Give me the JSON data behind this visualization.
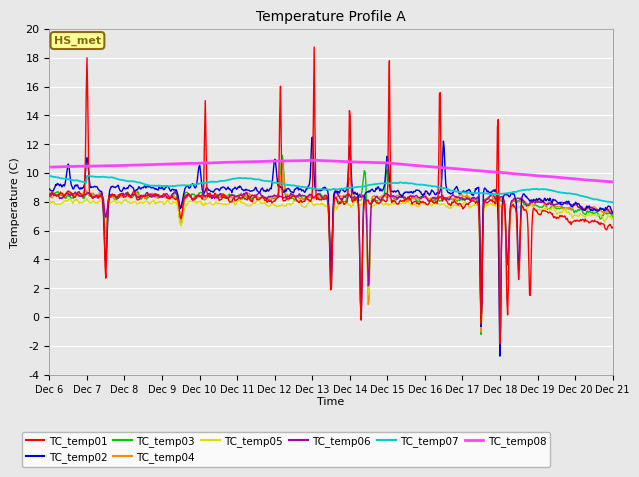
{
  "title": "Temperature Profile A",
  "xlabel": "Time",
  "ylabel": "Temperature (C)",
  "ylim": [
    -4,
    20
  ],
  "annotation_text": "HS_met",
  "annotation_bg": "#FFFF99",
  "annotation_border": "#8B6914",
  "plot_bg": "#E8E8E8",
  "fig_bg": "#E8E8E8",
  "grid_color": "#FFFFFF",
  "series_colors": {
    "TC_temp01": "#FF0000",
    "TC_temp02": "#0000DD",
    "TC_temp03": "#00CC00",
    "TC_temp04": "#FF8800",
    "TC_temp05": "#DDDD00",
    "TC_temp06": "#AA00AA",
    "TC_temp07": "#00CCCC",
    "TC_temp08": "#FF44FF"
  },
  "x_tick_labels": [
    "Dec 6",
    "Dec 7",
    "Dec 8",
    "Dec 9",
    "Dec 10",
    "Dec 11",
    "Dec 12",
    "Dec 13",
    "Dec 14",
    "Dec 15",
    "Dec 16",
    "Dec 17",
    "Dec 18",
    "Dec 19",
    "Dec 20",
    "Dec 21"
  ],
  "yticks": [
    -4,
    -2,
    0,
    2,
    4,
    6,
    8,
    10,
    12,
    14,
    16,
    18,
    20
  ]
}
